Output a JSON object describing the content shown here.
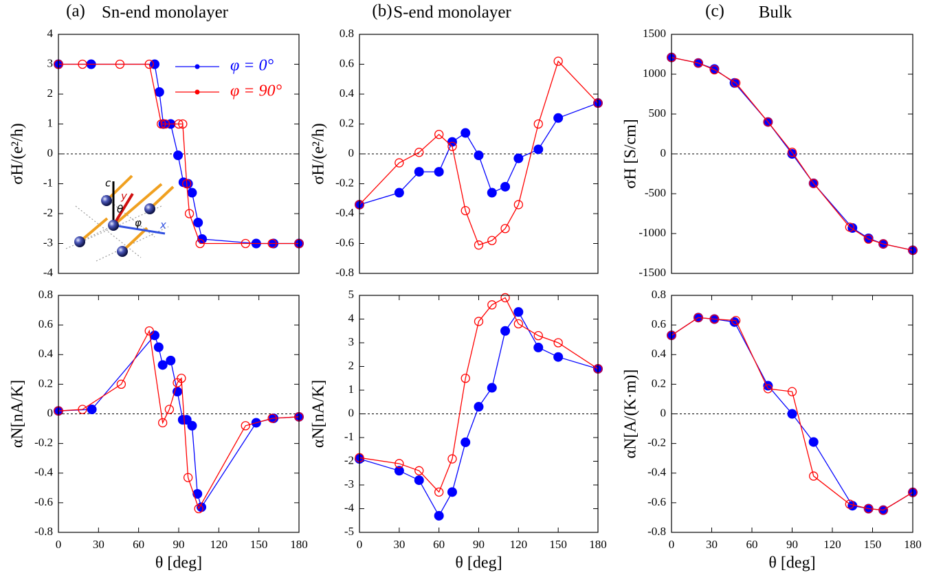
{
  "chart_data": [
    {
      "type": "line",
      "panel": "(a)",
      "title": "Sn-end monolayer",
      "ylabel": "σH/(e²/h)",
      "xlim": [
        0,
        180
      ],
      "ylim": [
        -4,
        4
      ],
      "yticks": [
        -4,
        -3,
        -2,
        -1,
        0,
        1,
        2,
        3,
        4
      ],
      "zero_line": true,
      "legend": "upper right",
      "inset_labels": [
        "c",
        "y",
        "θ",
        "φ",
        "x"
      ],
      "series": [
        {
          "name": "φ = 0°",
          "color": "#0000ff",
          "marker": "filled",
          "x": [
            0,
            24.5,
            72,
            75.5,
            78.5,
            84,
            89.5,
            93.5,
            97,
            100,
            104.5,
            107.5,
            148,
            161,
            180
          ],
          "values": [
            3,
            3,
            3,
            2.07,
            1,
            1,
            -0.05,
            -0.95,
            -1,
            -1.3,
            -2.3,
            -2.85,
            -3,
            -3,
            -3
          ]
        },
        {
          "name": "φ = 90°",
          "color": "#ff0000",
          "marker": "open",
          "x": [
            0,
            18,
            46,
            68,
            77,
            80,
            90,
            93,
            96,
            98,
            106,
            140,
            160,
            180
          ],
          "values": [
            3,
            3,
            3,
            3,
            1,
            1,
            1,
            1,
            -1,
            -2,
            -3,
            -3,
            -3,
            -3
          ]
        }
      ]
    },
    {
      "type": "line",
      "ylabel": "αN[nA/K]",
      "xlabel": "θ [deg]",
      "xlim": [
        0,
        180
      ],
      "xticks": [
        0,
        30,
        60,
        90,
        120,
        150,
        180
      ],
      "ylim": [
        -0.8,
        0.8
      ],
      "yticks": [
        -0.8,
        -0.6,
        -0.4,
        -0.2,
        0,
        0.2,
        0.4,
        0.6,
        0.8
      ],
      "zero_line": true,
      "series": [
        {
          "color": "#0000ff",
          "marker": "filled",
          "x": [
            0,
            25,
            72,
            75,
            78,
            84,
            89,
            93,
            96,
            100,
            104,
            107,
            148,
            161,
            180
          ],
          "values": [
            0.02,
            0.03,
            0.53,
            0.45,
            0.33,
            0.36,
            0.15,
            -0.04,
            -0.04,
            -0.08,
            -0.54,
            -0.63,
            -0.06,
            -0.03,
            -0.02
          ]
        },
        {
          "color": "#ff0000",
          "marker": "open",
          "x": [
            0,
            18,
            47,
            68,
            78,
            83,
            89,
            92,
            97,
            105,
            140,
            160,
            180
          ],
          "values": [
            0.02,
            0.03,
            0.2,
            0.56,
            -0.06,
            0.03,
            0.21,
            0.24,
            -0.43,
            -0.64,
            -0.08,
            -0.03,
            -0.02
          ]
        }
      ]
    },
    {
      "type": "line",
      "panel": "(b)",
      "title": "S-end monolayer",
      "ylabel": "σH/(e²/h)",
      "xlim": [
        0,
        180
      ],
      "ylim": [
        -0.8,
        0.8
      ],
      "yticks": [
        -0.8,
        -0.6,
        -0.4,
        -0.2,
        0,
        0.2,
        0.4,
        0.6,
        0.8
      ],
      "zero_line": true,
      "series": [
        {
          "color": "#0000ff",
          "marker": "filled",
          "x": [
            0,
            30,
            45,
            60,
            70,
            80,
            90,
            100,
            110,
            120,
            135,
            150,
            180
          ],
          "values": [
            -0.34,
            -0.26,
            -0.12,
            -0.12,
            0.08,
            0.14,
            -0.01,
            -0.26,
            -0.22,
            -0.03,
            0.03,
            0.24,
            0.34
          ]
        },
        {
          "color": "#ff0000",
          "marker": "open",
          "x": [
            0,
            30,
            45,
            60,
            70,
            80,
            90,
            100,
            110,
            120,
            135,
            150,
            180
          ],
          "values": [
            -0.34,
            -0.06,
            0.01,
            0.13,
            0.05,
            -0.38,
            -0.61,
            -0.58,
            -0.5,
            -0.34,
            0.2,
            0.62,
            0.34
          ]
        }
      ]
    },
    {
      "type": "line",
      "ylabel": "αN[nA/K]",
      "xlabel": "θ [deg]",
      "xlim": [
        0,
        180
      ],
      "xticks": [
        0,
        30,
        60,
        90,
        120,
        150,
        180
      ],
      "ylim": [
        -5,
        5
      ],
      "yticks": [
        -5,
        -4,
        -3,
        -2,
        -1,
        0,
        1,
        2,
        3,
        4,
        5
      ],
      "zero_line": true,
      "series": [
        {
          "color": "#0000ff",
          "marker": "filled",
          "x": [
            0,
            30,
            45,
            60,
            70,
            80,
            90,
            100,
            110,
            120,
            135,
            150,
            180
          ],
          "values": [
            -1.9,
            -2.4,
            -2.8,
            -4.3,
            -3.3,
            -1.2,
            0.3,
            1.1,
            3.5,
            4.3,
            2.8,
            2.4,
            1.9
          ]
        },
        {
          "color": "#ff0000",
          "marker": "open",
          "x": [
            0,
            30,
            45,
            60,
            70,
            80,
            90,
            100,
            110,
            120,
            135,
            150,
            180
          ],
          "values": [
            -1.85,
            -2.1,
            -2.4,
            -3.3,
            -1.9,
            1.5,
            3.9,
            4.6,
            4.9,
            3.8,
            3.3,
            3.0,
            1.9
          ]
        }
      ]
    },
    {
      "type": "line",
      "panel": "(c)",
      "title": "Bulk",
      "ylabel": "σH [S/cm]",
      "xlim": [
        0,
        180
      ],
      "ylim": [
        -1500,
        1500
      ],
      "yticks": [
        -1500,
        -1000,
        -500,
        0,
        500,
        1000,
        1500
      ],
      "zero_line": true,
      "series": [
        {
          "color": "#0000ff",
          "marker": "filled",
          "x": [
            0,
            20,
            32,
            47,
            72,
            90,
            106,
            135,
            147,
            158,
            180
          ],
          "values": [
            1210,
            1140,
            1065,
            890,
            400,
            0,
            -370,
            -930,
            -1060,
            -1130,
            -1210
          ]
        },
        {
          "color": "#ff0000",
          "marker": "open",
          "x": [
            0,
            20,
            32,
            48,
            72,
            90,
            106,
            133,
            147,
            158,
            180
          ],
          "values": [
            1210,
            1140,
            1055,
            890,
            400,
            20,
            -370,
            -920,
            -1070,
            -1130,
            -1210
          ]
        }
      ]
    },
    {
      "type": "line",
      "ylabel": "αN[A/(K·m)]",
      "xlabel": "θ [deg]",
      "xlim": [
        0,
        180
      ],
      "xticks": [
        0,
        30,
        60,
        90,
        120,
        150,
        180
      ],
      "ylim": [
        -0.8,
        0.8
      ],
      "yticks": [
        -0.8,
        -0.6,
        -0.4,
        -0.2,
        0,
        0.2,
        0.4,
        0.6,
        0.8
      ],
      "zero_line": true,
      "series": [
        {
          "color": "#0000ff",
          "marker": "filled",
          "x": [
            0,
            20,
            32,
            47,
            72,
            90,
            106,
            135,
            147,
            158,
            180
          ],
          "values": [
            0.53,
            0.65,
            0.64,
            0.62,
            0.19,
            0.0,
            -0.19,
            -0.62,
            -0.64,
            -0.65,
            -0.53
          ]
        },
        {
          "color": "#ff0000",
          "marker": "open",
          "x": [
            0,
            20,
            32,
            48,
            72,
            90,
            106,
            133,
            147,
            158,
            180
          ],
          "values": [
            0.53,
            0.65,
            0.64,
            0.63,
            0.17,
            0.15,
            -0.42,
            -0.61,
            -0.64,
            -0.65,
            -0.53
          ]
        }
      ]
    }
  ]
}
